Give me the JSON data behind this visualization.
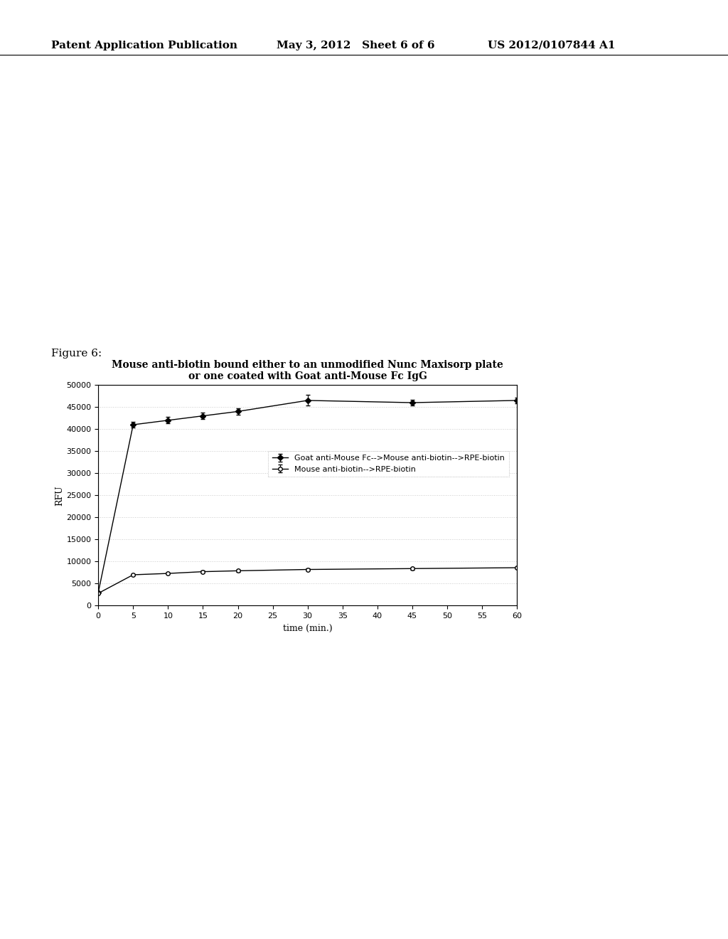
{
  "title_line1": "Mouse anti-biotin bound either to an unmodified Nunc Maxisorp plate",
  "title_line2": "or one coated with Goat anti-Mouse Fc IgG",
  "xlabel": "time (min.)",
  "ylabel": "RFU",
  "figure_label": "Figure 6:",
  "header_left": "Patent Application Publication",
  "header_mid": "May 3, 2012   Sheet 6 of 6",
  "header_right": "US 2012/0107844 A1",
  "xlim": [
    0,
    60
  ],
  "ylim": [
    0,
    50000
  ],
  "xticks": [
    0,
    5,
    10,
    15,
    20,
    25,
    30,
    35,
    40,
    45,
    50,
    55,
    60
  ],
  "yticks": [
    0,
    5000,
    10000,
    15000,
    20000,
    25000,
    30000,
    35000,
    40000,
    45000,
    50000
  ],
  "series1_label": "Goat anti-Mouse Fc-->Mouse anti-biotin-->RPE-biotin",
  "series1_x": [
    0,
    5,
    10,
    15,
    20,
    30,
    45,
    60
  ],
  "series1_y": [
    3000,
    41000,
    42000,
    43000,
    44000,
    46500,
    46000,
    46500
  ],
  "series1_yerr": [
    200,
    700,
    700,
    700,
    700,
    1200,
    700,
    700
  ],
  "series2_label": "Mouse anti-biotin-->RPE-biotin",
  "series2_x": [
    0,
    5,
    10,
    15,
    20,
    30,
    45,
    60
  ],
  "series2_y": [
    2800,
    7000,
    7300,
    7700,
    7900,
    8200,
    8400,
    8600
  ],
  "series2_yerr": [
    100,
    200,
    200,
    200,
    200,
    200,
    200,
    200
  ],
  "bg_color": "#ffffff",
  "plot_bg_color": "#ffffff",
  "line_color": "#000000",
  "grid_color": "#cccccc",
  "header_fontsize": 11,
  "figure_label_fontsize": 11,
  "title_fontsize": 10,
  "axis_label_fontsize": 9,
  "tick_fontsize": 8,
  "legend_fontsize": 8
}
